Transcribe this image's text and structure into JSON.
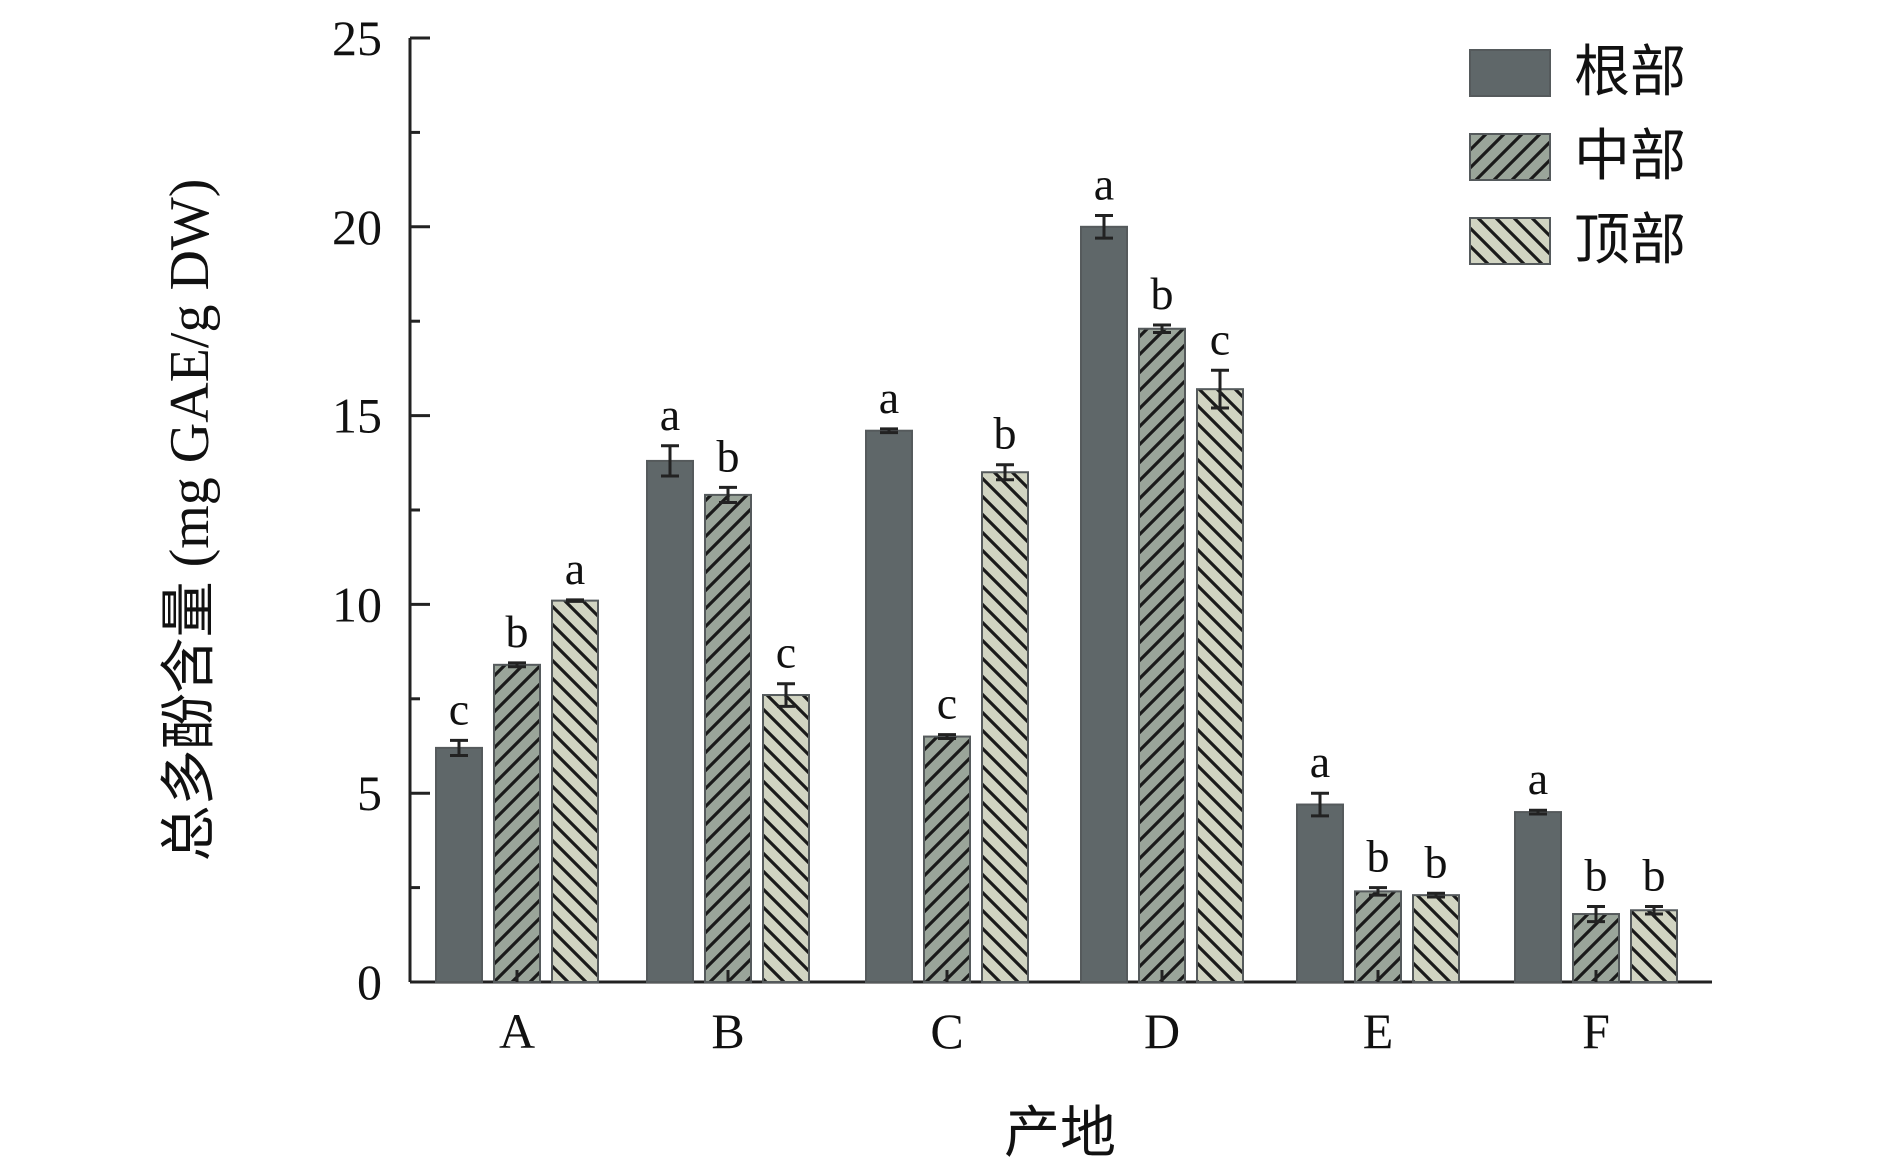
{
  "chart_data": {
    "type": "bar",
    "xlabel": "产地",
    "ylabel": "总多酚含量 (mg GAE/g DW)",
    "ylim": [
      0,
      25
    ],
    "yticks": [
      0,
      5,
      10,
      15,
      20,
      25
    ],
    "categories": [
      "A",
      "B",
      "C",
      "D",
      "E",
      "F"
    ],
    "legend_position": "top-right",
    "grid": false,
    "series": [
      {
        "name": "根部",
        "pattern": "solid",
        "color": "#5f6769",
        "values": [
          6.2,
          13.8,
          14.6,
          20.0,
          4.7,
          4.5
        ],
        "errors": [
          0.2,
          0.4,
          0.05,
          0.3,
          0.3,
          0.05
        ],
        "letters": [
          "c",
          "a",
          "a",
          "a",
          "a",
          "a"
        ]
      },
      {
        "name": "中部",
        "pattern": "forward-hatch",
        "color": "#9aa59a",
        "values": [
          8.4,
          12.9,
          6.5,
          17.3,
          2.4,
          1.8
        ],
        "errors": [
          0.05,
          0.2,
          0.05,
          0.1,
          0.1,
          0.2
        ],
        "letters": [
          "b",
          "b",
          "c",
          "b",
          "b",
          "b"
        ]
      },
      {
        "name": "顶部",
        "pattern": "back-hatch",
        "color": "#d1d4c2",
        "values": [
          10.1,
          7.6,
          13.5,
          15.7,
          2.3,
          1.9
        ],
        "errors": [
          0.02,
          0.3,
          0.2,
          0.5,
          0.05,
          0.1
        ],
        "letters": [
          "a",
          "c",
          "b",
          "c",
          "b",
          "b"
        ]
      }
    ]
  }
}
